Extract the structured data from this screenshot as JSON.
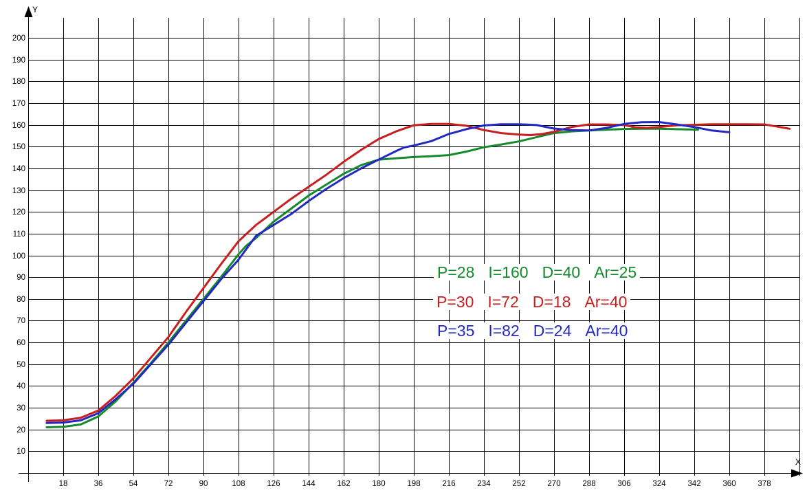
{
  "chart_data": {
    "type": "line",
    "title": "",
    "xlabel": "X",
    "ylabel": "Y",
    "grid": true,
    "xlim": [
      0,
      400
    ],
    "ylim": [
      0,
      210
    ],
    "x_ticks": [
      18,
      36,
      54,
      72,
      90,
      108,
      126,
      144,
      162,
      180,
      198,
      216,
      234,
      252,
      270,
      288,
      306,
      324,
      342,
      360,
      378
    ],
    "x_gridlines": [
      18,
      36,
      54,
      72,
      90,
      108,
      126,
      144,
      162,
      180,
      198,
      216,
      234,
      252,
      270,
      288,
      306,
      324,
      342,
      360,
      378,
      396
    ],
    "y_ticks": [
      10,
      20,
      30,
      40,
      50,
      60,
      70,
      80,
      90,
      100,
      110,
      120,
      130,
      140,
      150,
      160,
      170,
      180,
      190,
      200
    ],
    "axis_color": "#000000",
    "background_color": "#ffffff",
    "legend_position": "middle-right",
    "series": [
      {
        "name": "green",
        "color": "#148A2D",
        "legend_tokens": [
          "P=28",
          "I=160",
          "D=40",
          "Ar=25"
        ],
        "legend": {
          "P": 28,
          "I": 160,
          "D": 40,
          "Ar": 25
        },
        "points": [
          [
            9.5,
            21
          ],
          [
            18,
            21.2
          ],
          [
            27,
            22.3
          ],
          [
            36,
            26
          ],
          [
            45,
            33
          ],
          [
            54,
            41.5
          ],
          [
            63,
            50.5
          ],
          [
            72,
            60
          ],
          [
            81,
            70
          ],
          [
            90,
            80
          ],
          [
            99,
            90
          ],
          [
            108,
            100.5
          ],
          [
            112,
            104.5
          ],
          [
            117,
            108
          ],
          [
            126,
            115.5
          ],
          [
            135,
            121.5
          ],
          [
            144,
            127.5
          ],
          [
            153,
            132.5
          ],
          [
            162,
            137.5
          ],
          [
            171,
            141.5
          ],
          [
            180,
            144
          ],
          [
            189,
            144.6
          ],
          [
            198,
            145.2
          ],
          [
            207,
            145.6
          ],
          [
            216,
            146.1
          ],
          [
            225,
            147.7
          ],
          [
            234,
            149.7
          ],
          [
            243,
            151
          ],
          [
            252,
            152.4
          ],
          [
            261,
            154.3
          ],
          [
            270,
            156.2
          ],
          [
            279,
            157
          ],
          [
            288,
            157.4
          ],
          [
            297,
            157.8
          ],
          [
            306,
            158.1
          ],
          [
            315,
            158.2
          ],
          [
            324,
            158.2
          ],
          [
            333,
            158
          ],
          [
            344,
            157.8
          ]
        ]
      },
      {
        "name": "red",
        "color": "#C81E1E",
        "legend_tokens": [
          "P=30",
          "I=72",
          "D=18",
          "Ar=40"
        ],
        "legend": {
          "P": 30,
          "I": 72,
          "D": 18,
          "Ar": 40
        },
        "points": [
          [
            9.5,
            24
          ],
          [
            18,
            24.2
          ],
          [
            27,
            25.4
          ],
          [
            36,
            28.7
          ],
          [
            45,
            35.5
          ],
          [
            54,
            43.5
          ],
          [
            63,
            53
          ],
          [
            72,
            62.5
          ],
          [
            81,
            74
          ],
          [
            90,
            85
          ],
          [
            99,
            96
          ],
          [
            108,
            106.5
          ],
          [
            117,
            114
          ],
          [
            126,
            120
          ],
          [
            135,
            126
          ],
          [
            144,
            131.5
          ],
          [
            153,
            137
          ],
          [
            162,
            143
          ],
          [
            171,
            148.5
          ],
          [
            180,
            153.5
          ],
          [
            189,
            157
          ],
          [
            198,
            159.8
          ],
          [
            207,
            160.4
          ],
          [
            216,
            160.4
          ],
          [
            225,
            159.6
          ],
          [
            234,
            157.6
          ],
          [
            243,
            156.2
          ],
          [
            252,
            155.5
          ],
          [
            258,
            155.3
          ],
          [
            264,
            155.8
          ],
          [
            270,
            156.8
          ],
          [
            279,
            159
          ],
          [
            288,
            160.2
          ],
          [
            297,
            160.2
          ],
          [
            306,
            159.9
          ],
          [
            312,
            158.8
          ],
          [
            318,
            158.6
          ],
          [
            324,
            159
          ],
          [
            333,
            159.8
          ],
          [
            342,
            160
          ],
          [
            351,
            160.3
          ],
          [
            360,
            160.3
          ],
          [
            369,
            160.3
          ],
          [
            378,
            160.2
          ],
          [
            384,
            159.3
          ],
          [
            391,
            158.2
          ]
        ]
      },
      {
        "name": "blue",
        "color": "#2328C3",
        "legend_tokens": [
          "P=35",
          "I=82",
          "D=24",
          "Ar=40"
        ],
        "legend": {
          "P": 35,
          "I": 82,
          "D": 24,
          "Ar": 40
        },
        "points": [
          [
            9.5,
            23
          ],
          [
            18,
            23.2
          ],
          [
            27,
            24.2
          ],
          [
            36,
            27.5
          ],
          [
            45,
            34
          ],
          [
            54,
            41
          ],
          [
            63,
            50
          ],
          [
            72,
            59
          ],
          [
            81,
            69
          ],
          [
            90,
            79
          ],
          [
            99,
            89
          ],
          [
            108,
            98
          ],
          [
            117,
            109
          ],
          [
            126,
            114
          ],
          [
            135,
            119
          ],
          [
            144,
            125
          ],
          [
            153,
            130.5
          ],
          [
            162,
            135.5
          ],
          [
            171,
            140
          ],
          [
            180,
            144
          ],
          [
            189,
            148
          ],
          [
            193,
            149.6
          ],
          [
            198,
            150.5
          ],
          [
            207,
            152.5
          ],
          [
            216,
            155.8
          ],
          [
            225,
            158
          ],
          [
            234,
            159.7
          ],
          [
            243,
            160.3
          ],
          [
            252,
            160.3
          ],
          [
            261,
            159.9
          ],
          [
            270,
            158.3
          ],
          [
            279,
            157.6
          ],
          [
            288,
            157.4
          ],
          [
            297,
            158.6
          ],
          [
            306,
            160.4
          ],
          [
            315,
            161.2
          ],
          [
            324,
            161.3
          ],
          [
            333,
            160.2
          ],
          [
            342,
            159
          ],
          [
            351,
            157.4
          ],
          [
            360,
            156.6
          ]
        ]
      }
    ]
  }
}
